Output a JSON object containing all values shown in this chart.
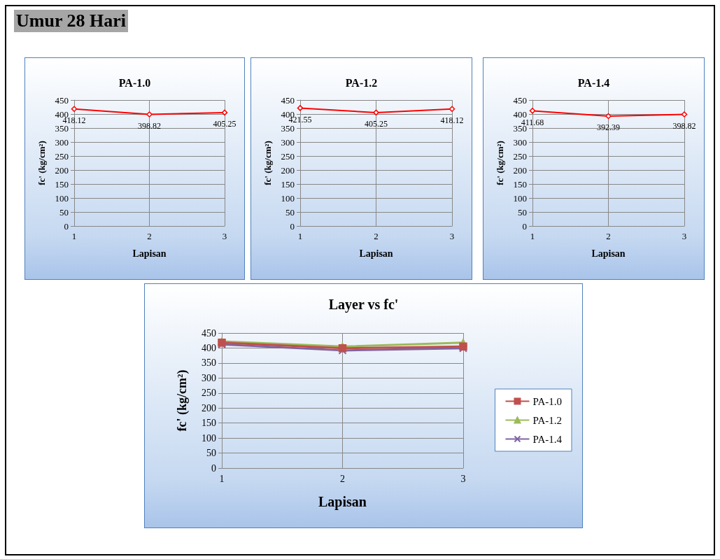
{
  "chart_data": [
    {
      "type": "other",
      "title": "Umur 28 Hari"
    },
    {
      "type": "line",
      "title": "PA-1.0",
      "xlabel": "Lapisan",
      "ylabel": "fc' (kg/cm²)",
      "categories": [
        "1",
        "2",
        "3"
      ],
      "series": [
        {
          "color": "#ff0000",
          "values": [
            418.12,
            398.82,
            405.25
          ]
        }
      ],
      "ylim": [
        0,
        450
      ],
      "yticks": [
        0,
        50,
        100,
        150,
        200,
        250,
        300,
        350,
        400,
        450
      ],
      "grid": true,
      "marker": "diamond",
      "data_labels": true,
      "legend": false
    },
    {
      "type": "line",
      "title": "PA-1.2",
      "xlabel": "Lapisan",
      "ylabel": "fc' (kg/cm²)",
      "categories": [
        "1",
        "2",
        "3"
      ],
      "series": [
        {
          "color": "#ff0000",
          "values": [
            421.55,
            405.25,
            418.12
          ]
        }
      ],
      "ylim": [
        0,
        450
      ],
      "yticks": [
        0,
        50,
        100,
        150,
        200,
        250,
        300,
        350,
        400,
        450
      ],
      "grid": true,
      "marker": "diamond",
      "data_labels": true,
      "legend": false
    },
    {
      "type": "line",
      "title": "PA-1.4",
      "xlabel": "Lapisan",
      "ylabel": "fc' (kg/cm²)",
      "categories": [
        "1",
        "2",
        "3"
      ],
      "series": [
        {
          "color": "#ff0000",
          "values": [
            411.68,
            392.39,
            398.82
          ]
        }
      ],
      "ylim": [
        0,
        450
      ],
      "yticks": [
        0,
        50,
        100,
        150,
        200,
        250,
        300,
        350,
        400,
        450
      ],
      "grid": true,
      "marker": "diamond",
      "data_labels": true,
      "legend": false
    },
    {
      "type": "line",
      "title": "Layer vs fc'",
      "xlabel": "Lapisan",
      "ylabel": "fc' (kg/cm²)",
      "categories": [
        "1",
        "2",
        "3"
      ],
      "series": [
        {
          "name": "PA-1.0",
          "color": "#c0504d",
          "marker": "square",
          "values": [
            418,
            399,
            405
          ]
        },
        {
          "name": "PA-1.2",
          "color": "#9bbb59",
          "marker": "triangle",
          "values": [
            422,
            405,
            418
          ]
        },
        {
          "name": "PA-1.4",
          "color": "#8064a2",
          "marker": "cross",
          "values": [
            412,
            392,
            399
          ]
        }
      ],
      "ylim": [
        0,
        450
      ],
      "yticks": [
        0,
        50,
        100,
        150,
        200,
        250,
        300,
        350,
        400,
        450
      ],
      "grid": true,
      "legend": "right"
    }
  ]
}
